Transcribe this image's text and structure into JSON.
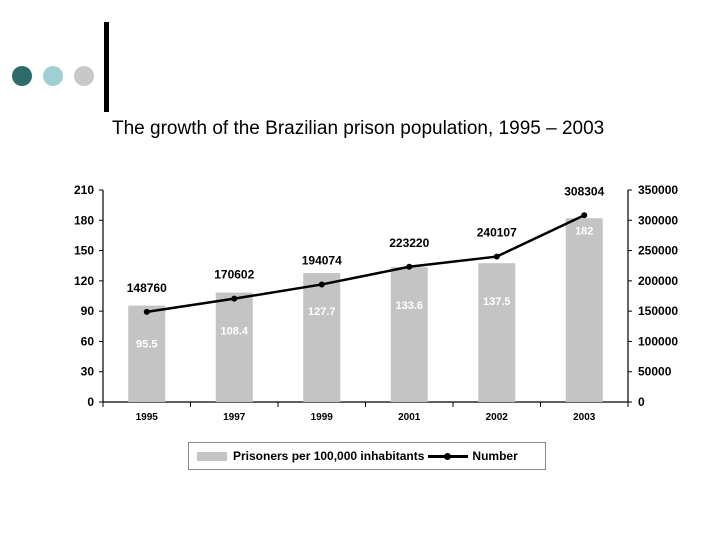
{
  "decor": {
    "dot_colors": [
      "#2e6b6b",
      "#9fcfd2",
      "#c8c8c8"
    ],
    "bar_color": "#000000"
  },
  "chart_data": {
    "type": "bar",
    "title": "The growth of the Brazilian prison population, 1995 – 2003",
    "categories": [
      "1995",
      "1997",
      "1999",
      "2001",
      "2002",
      "2003"
    ],
    "series": [
      {
        "name": "Prisoners per 100,000 inhabitants",
        "type": "bar",
        "axis": "left",
        "color": "#c4c4c4",
        "values": [
          95.5,
          108.4,
          127.7,
          133.6,
          137.5,
          182
        ],
        "labels": [
          "95.5",
          "108.4",
          "127.7",
          "133.6",
          "137.5",
          "182"
        ]
      },
      {
        "name": "Number",
        "type": "line",
        "axis": "right",
        "color": "#000000",
        "values": [
          148760,
          170602,
          194074,
          223220,
          240107,
          308304
        ],
        "labels": [
          "148760",
          "170602",
          "194074",
          "223220",
          "240107",
          "308304"
        ]
      }
    ],
    "y_left": {
      "min": 0,
      "max": 210,
      "ticks": [
        "0",
        "30",
        "60",
        "90",
        "120",
        "150",
        "180",
        "210"
      ]
    },
    "y_right": {
      "min": 0,
      "max": 350000,
      "ticks": [
        "0",
        "50000",
        "100000",
        "150000",
        "200000",
        "250000",
        "300000",
        "350000"
      ]
    },
    "legend_position": "bottom",
    "grid": false
  }
}
